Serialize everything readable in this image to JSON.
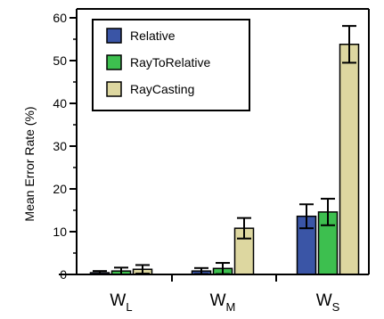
{
  "chart_data": {
    "type": "bar",
    "ylabel": "Mean Error Rate (%)",
    "xlabel": "",
    "ylim": [
      0,
      60
    ],
    "yticks": [
      0,
      10,
      20,
      30,
      40,
      50,
      60
    ],
    "categories": [
      {
        "main": "W",
        "sub": "L"
      },
      {
        "main": "W",
        "sub": "M"
      },
      {
        "main": "W",
        "sub": "S"
      }
    ],
    "series": [
      {
        "name": "Relative",
        "color": "#3a55a6",
        "values": [
          0.4,
          0.8,
          13.6
        ],
        "errors": [
          0.4,
          0.7,
          2.8
        ]
      },
      {
        "name": "RayToRelative",
        "color": "#3dbf4f",
        "values": [
          0.8,
          1.4,
          14.6
        ],
        "errors": [
          0.8,
          1.3,
          3.1
        ]
      },
      {
        "name": "RayCasting",
        "color": "#ddd7a0",
        "values": [
          1.2,
          10.8,
          53.8
        ],
        "errors": [
          1.0,
          2.4,
          4.3
        ]
      }
    ],
    "legend": "top-left",
    "grid": false
  }
}
